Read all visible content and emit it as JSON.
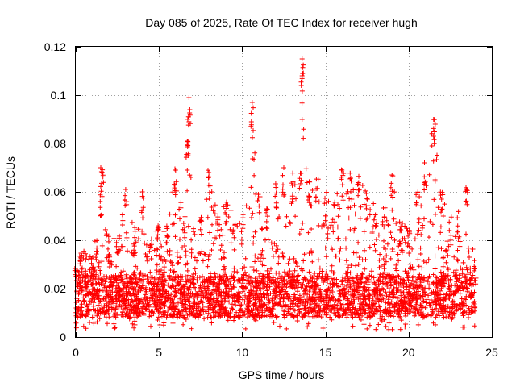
{
  "chart_data": {
    "type": "scatter",
    "title": "Day 085 of 2025, Rate Of TEC Index for receiver hugh",
    "xlabel": "GPS time / hours",
    "ylabel": "ROTI / TECUs",
    "xlim": [
      0,
      25
    ],
    "ylim": [
      0,
      0.12
    ],
    "x_ticks": [
      0,
      5,
      10,
      15,
      20,
      25
    ],
    "x_tick_labels": [
      "0",
      "5",
      "10",
      "15",
      "20",
      "25"
    ],
    "y_ticks": [
      0,
      0.02,
      0.04,
      0.06,
      0.08,
      0.1,
      0.12
    ],
    "y_tick_labels": [
      "0",
      "0.02",
      "0.04",
      "0.06",
      "0.08",
      "0.1",
      "0.12"
    ],
    "grid": true,
    "marker": "plus",
    "series_color": "#ff0000",
    "baseline": {
      "x_range": [
        0,
        24
      ],
      "y_typical_range": [
        0.008,
        0.025
      ],
      "y_min": 0.003
    },
    "envelope": [
      {
        "x": 0.0,
        "y": 0.03
      },
      {
        "x": 0.3,
        "y": 0.037
      },
      {
        "x": 1.0,
        "y": 0.033
      },
      {
        "x": 1.5,
        "y": 0.062
      },
      {
        "x": 1.6,
        "y": 0.07
      },
      {
        "x": 2.0,
        "y": 0.042
      },
      {
        "x": 2.5,
        "y": 0.04
      },
      {
        "x": 3.0,
        "y": 0.062
      },
      {
        "x": 3.5,
        "y": 0.045
      },
      {
        "x": 4.0,
        "y": 0.06
      },
      {
        "x": 4.5,
        "y": 0.042
      },
      {
        "x": 5.0,
        "y": 0.05
      },
      {
        "x": 5.5,
        "y": 0.047
      },
      {
        "x": 6.0,
        "y": 0.07
      },
      {
        "x": 6.5,
        "y": 0.05
      },
      {
        "x": 6.7,
        "y": 0.081
      },
      {
        "x": 6.8,
        "y": 0.099
      },
      {
        "x": 7.0,
        "y": 0.045
      },
      {
        "x": 7.5,
        "y": 0.05
      },
      {
        "x": 8.0,
        "y": 0.069
      },
      {
        "x": 8.5,
        "y": 0.05
      },
      {
        "x": 9.0,
        "y": 0.058
      },
      {
        "x": 9.5,
        "y": 0.05
      },
      {
        "x": 10.0,
        "y": 0.05
      },
      {
        "x": 10.6,
        "y": 0.097
      },
      {
        "x": 11.0,
        "y": 0.06
      },
      {
        "x": 11.5,
        "y": 0.055
      },
      {
        "x": 12.0,
        "y": 0.065
      },
      {
        "x": 12.5,
        "y": 0.07
      },
      {
        "x": 13.0,
        "y": 0.068
      },
      {
        "x": 13.5,
        "y": 0.072
      },
      {
        "x": 13.6,
        "y": 0.115
      },
      {
        "x": 14.0,
        "y": 0.065
      },
      {
        "x": 14.5,
        "y": 0.066
      },
      {
        "x": 15.0,
        "y": 0.06
      },
      {
        "x": 15.5,
        "y": 0.055
      },
      {
        "x": 16.0,
        "y": 0.07
      },
      {
        "x": 16.5,
        "y": 0.068
      },
      {
        "x": 17.0,
        "y": 0.068
      },
      {
        "x": 17.5,
        "y": 0.06
      },
      {
        "x": 18.0,
        "y": 0.055
      },
      {
        "x": 18.5,
        "y": 0.055
      },
      {
        "x": 19.0,
        "y": 0.067
      },
      {
        "x": 19.5,
        "y": 0.05
      },
      {
        "x": 20.0,
        "y": 0.045
      },
      {
        "x": 20.5,
        "y": 0.06
      },
      {
        "x": 21.0,
        "y": 0.072
      },
      {
        "x": 21.5,
        "y": 0.09
      },
      {
        "x": 22.0,
        "y": 0.06
      },
      {
        "x": 22.5,
        "y": 0.05
      },
      {
        "x": 23.0,
        "y": 0.052
      },
      {
        "x": 23.5,
        "y": 0.062
      },
      {
        "x": 24.0,
        "y": 0.03
      }
    ],
    "outliers": [
      {
        "x": 6.8,
        "y": 0.099
      },
      {
        "x": 6.85,
        "y": 0.094
      },
      {
        "x": 6.8,
        "y": 0.089
      },
      {
        "x": 6.7,
        "y": 0.081
      },
      {
        "x": 6.75,
        "y": 0.075
      },
      {
        "x": 6.7,
        "y": 0.069
      },
      {
        "x": 6.0,
        "y": 0.069
      },
      {
        "x": 10.6,
        "y": 0.097
      },
      {
        "x": 13.6,
        "y": 0.115
      },
      {
        "x": 13.6,
        "y": 0.108
      },
      {
        "x": 13.55,
        "y": 0.104
      },
      {
        "x": 13.6,
        "y": 0.09
      },
      {
        "x": 21.5,
        "y": 0.09
      },
      {
        "x": 21.6,
        "y": 0.088
      },
      {
        "x": 21.5,
        "y": 0.083
      },
      {
        "x": 21.4,
        "y": 0.079
      },
      {
        "x": 1.5,
        "y": 0.07
      },
      {
        "x": 1.6,
        "y": 0.068
      },
      {
        "x": 8.0,
        "y": 0.068
      },
      {
        "x": 12.5,
        "y": 0.07
      },
      {
        "x": 16.0,
        "y": 0.069
      },
      {
        "x": 19.0,
        "y": 0.067
      },
      {
        "x": 3.0,
        "y": 0.061
      },
      {
        "x": 4.0,
        "y": 0.06
      },
      {
        "x": 23.5,
        "y": 0.061
      }
    ]
  }
}
